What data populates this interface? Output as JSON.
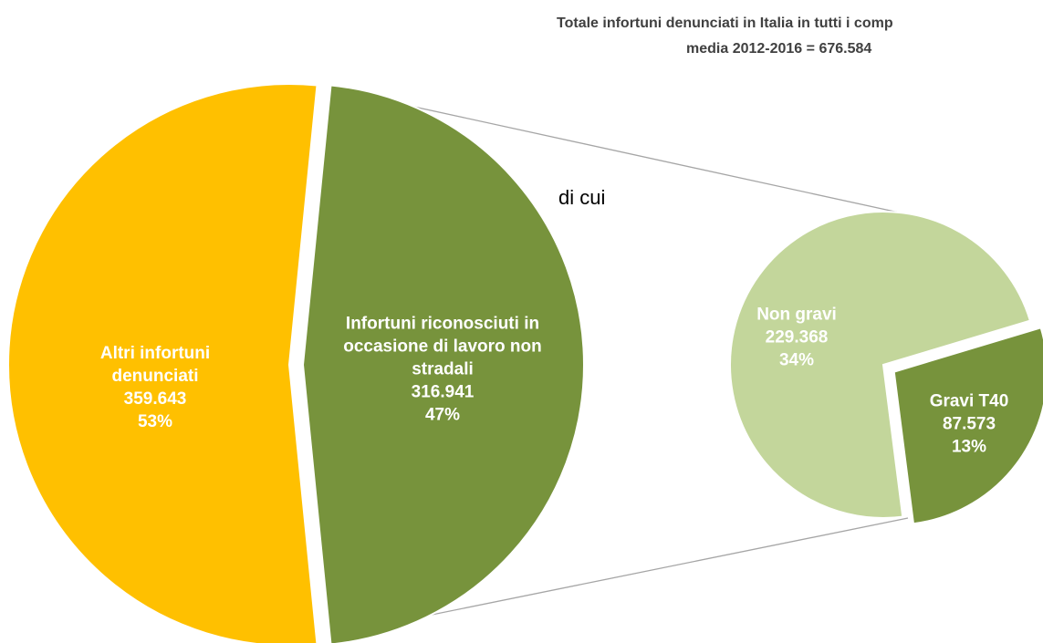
{
  "chart_data": {
    "type": "pie_of_pie",
    "title": "Totale infortuni denunciati in Italia in tutti i comp",
    "subtitle": "media 2012-2016 = 676.584",
    "annotation": "di cui",
    "categories": [
      "Altri infortuni denunciati",
      "Infortuni riconosciuti in occasione di lavoro non stradali"
    ],
    "values": [
      359643,
      316941
    ],
    "value_labels": [
      "359.643",
      "316.941"
    ],
    "percent_labels": [
      "53%",
      "47%"
    ],
    "colors": [
      "#ffc000",
      "#77933c"
    ],
    "secondary": {
      "categories": [
        "Non gravi",
        "Gravi T40"
      ],
      "values": [
        229368,
        87573
      ],
      "value_labels": [
        "229.368",
        "87.573"
      ],
      "percent_labels": [
        "34%",
        "13%"
      ],
      "colors": [
        "#c3d69b",
        "#77933c"
      ]
    }
  }
}
